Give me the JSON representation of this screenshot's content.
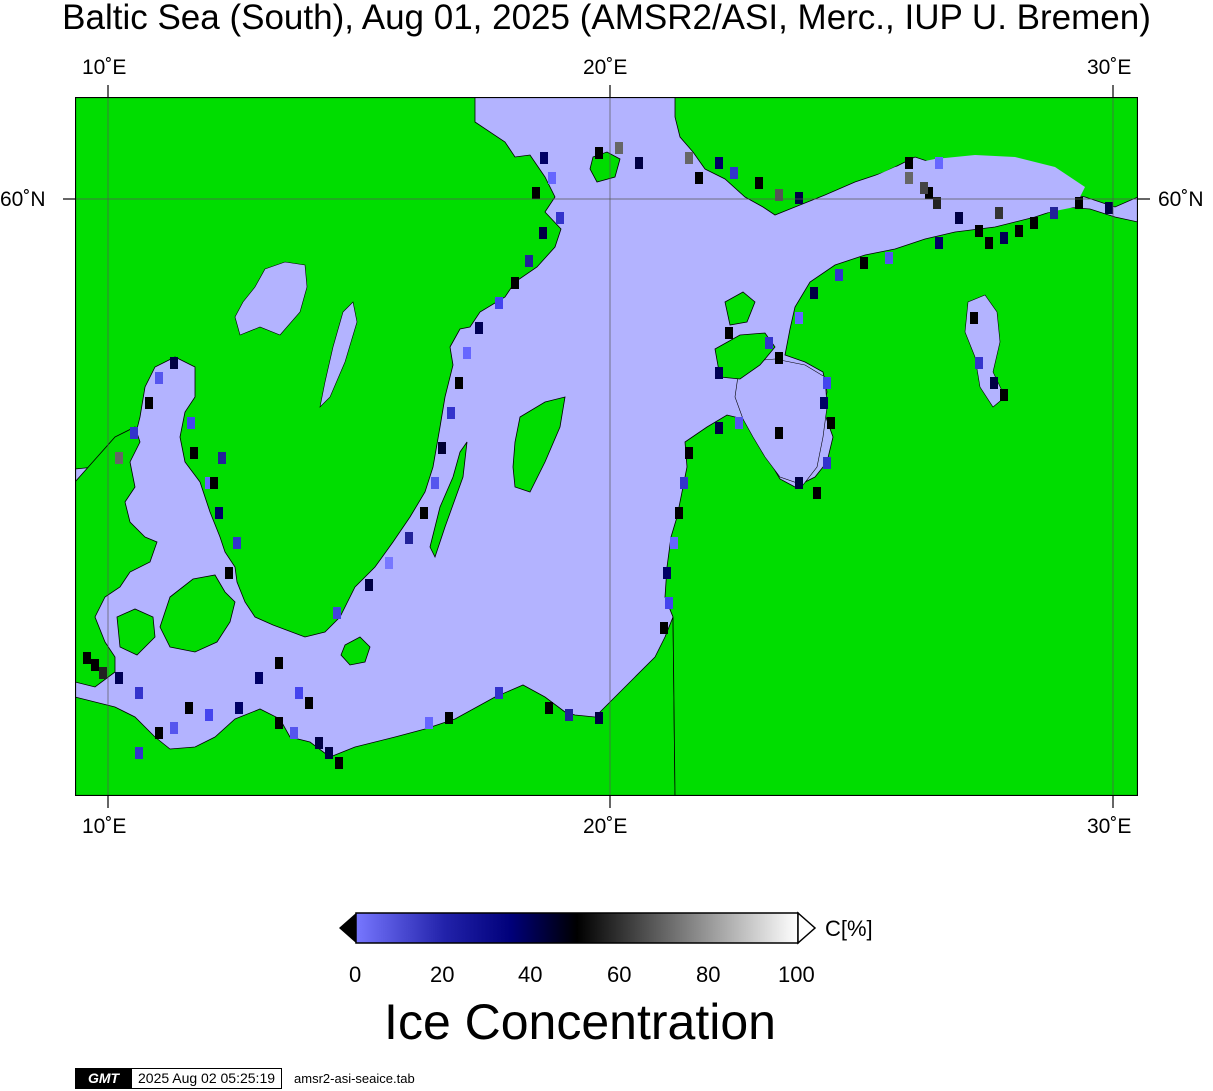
{
  "title": "Baltic Sea (South), Aug 01, 2025 (AMSR2/ASI, Merc., IUP U. Bremen)",
  "map": {
    "lon_range": [
      9.3,
      30.5
    ],
    "lat_range": [
      53.6,
      61.3
    ],
    "lon_ticks": [
      {
        "value": 10,
        "label": "10˚E"
      },
      {
        "value": 20,
        "label": "20˚E"
      },
      {
        "value": 30,
        "label": "30˚E"
      }
    ],
    "lat_ticks": [
      {
        "value": 60,
        "label": "60˚N"
      }
    ],
    "land_color": "#00dd00",
    "no_ice_color": "#b3b3ff",
    "coast_color": "#000000",
    "ice_present": "patchy low concentration pixels along coastlines only"
  },
  "colorbar": {
    "label": "Ice Concentration",
    "unit": "C[%]",
    "min": 0,
    "max": 100,
    "ticks": [
      "0",
      "20",
      "40",
      "60",
      "80",
      "100"
    ],
    "tick_values": [
      0,
      20,
      40,
      60,
      80,
      100
    ],
    "colors": [
      "#7777ff",
      "#00007a",
      "#000000",
      "#ffffff"
    ]
  },
  "footer": {
    "logo": "GMT",
    "timestamp": "2025 Aug 02 05:25:19",
    "filename": "amsr2-asi-seaice.tab"
  }
}
